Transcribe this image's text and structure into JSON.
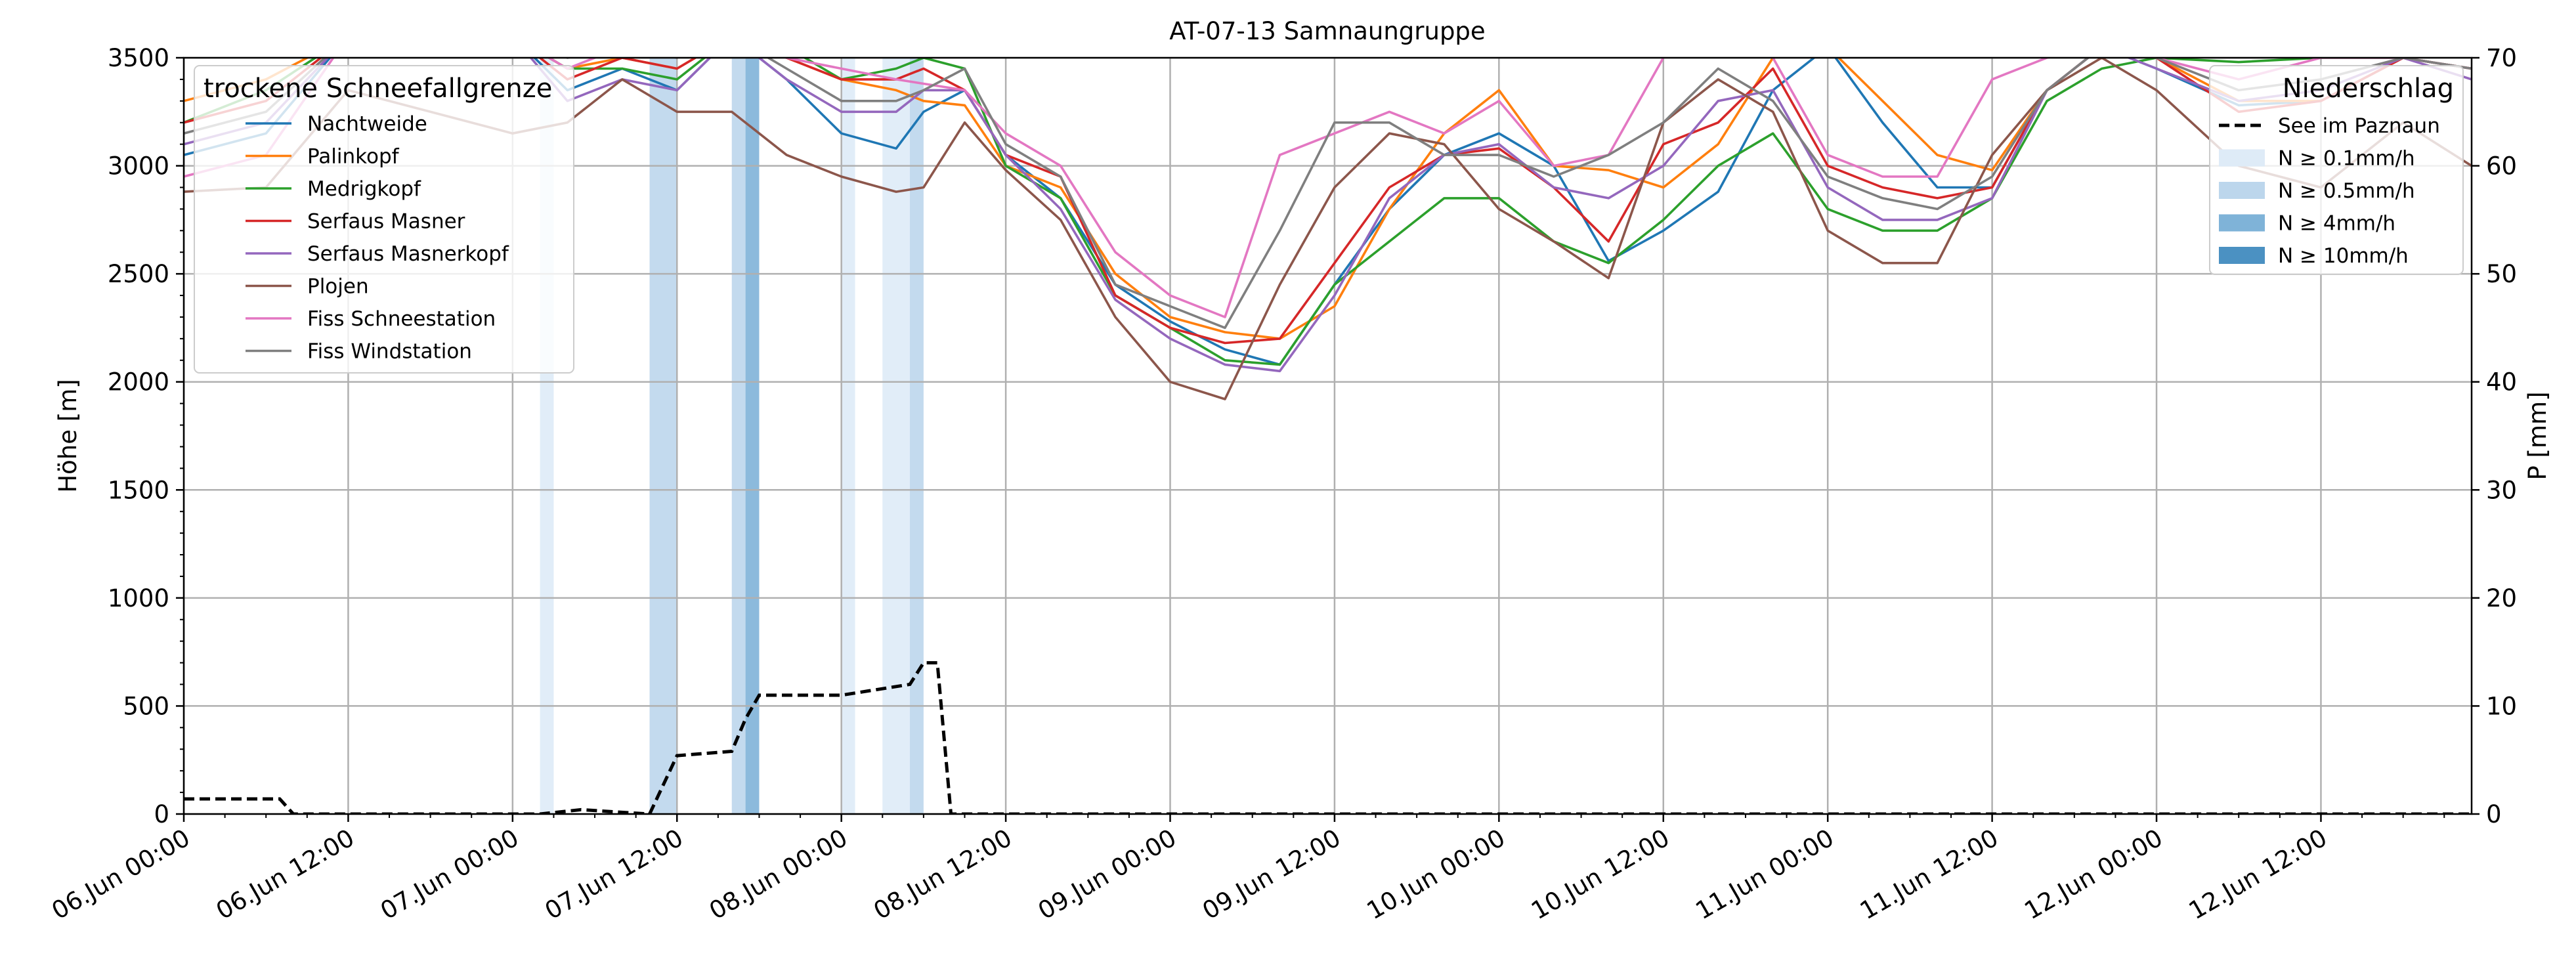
{
  "chart_data": {
    "type": "line",
    "title": "AT-07-13 Samnaungruppe",
    "ylabel": "Höhe [m]",
    "ylabel_right": "P [mm]",
    "ylim": [
      0,
      3500
    ],
    "ylim_right": [
      0,
      70
    ],
    "yticks": [
      0,
      500,
      1000,
      1500,
      2000,
      2500,
      3000,
      3500
    ],
    "yticks_right": [
      0,
      10,
      20,
      30,
      40,
      50,
      60,
      70
    ],
    "xlim_hours": [
      0,
      167
    ],
    "xticks": [
      {
        "h": 0,
        "label": "06.Jun 00:00"
      },
      {
        "h": 12,
        "label": "06.Jun 12:00"
      },
      {
        "h": 24,
        "label": "07.Jun 00:00"
      },
      {
        "h": 36,
        "label": "07.Jun 12:00"
      },
      {
        "h": 48,
        "label": "08.Jun 00:00"
      },
      {
        "h": 60,
        "label": "08.Jun 12:00"
      },
      {
        "h": 72,
        "label": "09.Jun 00:00"
      },
      {
        "h": 84,
        "label": "09.Jun 12:00"
      },
      {
        "h": 96,
        "label": "10.Jun 00:00"
      },
      {
        "h": 108,
        "label": "10.Jun 12:00"
      },
      {
        "h": 120,
        "label": "11.Jun 00:00"
      },
      {
        "h": 132,
        "label": "11.Jun 12:00"
      },
      {
        "h": 144,
        "label": "12.Jun 00:00"
      },
      {
        "h": 156,
        "label": "12.Jun 12:00"
      }
    ],
    "grid": true,
    "legend_left": {
      "title": "trockene Schneefallgrenze",
      "position": "top-left"
    },
    "legend_right": {
      "title": "Niederschlag",
      "position": "top-right",
      "entries": [
        {
          "label": "See im Paznaun",
          "style": "dashed",
          "color": "#000000"
        },
        {
          "label": "N ≥ 0.1mm/h",
          "color": "#deebf7"
        },
        {
          "label": "N ≥ 0.5mm/h",
          "color": "#bcd6ec"
        },
        {
          "label": "N ≥ 4mm/h",
          "color": "#7fb3d8"
        },
        {
          "label": "N ≥ 10mm/h",
          "color": "#4b91c2"
        }
      ]
    },
    "precip_bands": [
      {
        "start": 26,
        "end": 27,
        "level": 0
      },
      {
        "start": 34,
        "end": 36,
        "level": 1
      },
      {
        "start": 40,
        "end": 41,
        "level": 1
      },
      {
        "start": 41,
        "end": 42,
        "level": 2
      },
      {
        "start": 48,
        "end": 49,
        "level": 0
      },
      {
        "start": 51,
        "end": 53,
        "level": 0
      },
      {
        "start": 53,
        "end": 54,
        "level": 1
      }
    ],
    "precip_cumulative": {
      "name": "See im Paznaun",
      "unit": "mm",
      "x": [
        0,
        7,
        8,
        26,
        29,
        34,
        36,
        40,
        41,
        42,
        48,
        50,
        53,
        54,
        55,
        56,
        167
      ],
      "y": [
        1.4,
        1.4,
        0,
        0,
        0.4,
        0,
        5.4,
        5.8,
        8.8,
        11,
        11,
        11.4,
        12,
        14,
        14,
        0,
        0
      ]
    },
    "series": [
      {
        "name": "Nachtweide",
        "color": "#1f77b4",
        "x": [
          0,
          6,
          12,
          18,
          24,
          28,
          32,
          36,
          40,
          44,
          48,
          52,
          54,
          57,
          60,
          64,
          68,
          72,
          76,
          80,
          84,
          88,
          92,
          96,
          100,
          104,
          108,
          112,
          116,
          120,
          124,
          128,
          132,
          136,
          140,
          144,
          150,
          156,
          162,
          167
        ],
        "y": [
          3050,
          3150,
          3600,
          3600,
          3600,
          3350,
          3450,
          3350,
          3600,
          3400,
          3150,
          3080,
          3250,
          3350,
          3050,
          2850,
          2450,
          2280,
          2150,
          2080,
          2450,
          2800,
          3050,
          3150,
          3000,
          2560,
          2700,
          2880,
          3350,
          3550,
          3200,
          2900,
          2900,
          3350,
          3550,
          3450,
          3280,
          3300,
          3500,
          3450
        ]
      },
      {
        "name": "Palinkopf",
        "color": "#ff7f0e",
        "x": [
          0,
          6,
          12,
          18,
          24,
          28,
          32,
          36,
          40,
          44,
          48,
          52,
          54,
          57,
          60,
          64,
          68,
          72,
          76,
          80,
          84,
          88,
          92,
          96,
          100,
          104,
          108,
          112,
          116,
          120,
          124,
          128,
          132,
          136,
          140,
          144,
          150,
          156,
          162,
          167
        ],
        "y": [
          3300,
          3400,
          3600,
          3600,
          3600,
          3450,
          3500,
          3450,
          3600,
          3500,
          3400,
          3350,
          3300,
          3280,
          3000,
          2900,
          2500,
          2300,
          2230,
          2200,
          2350,
          2800,
          3150,
          3350,
          3000,
          2980,
          2900,
          3100,
          3500,
          3550,
          3300,
          3050,
          2980,
          3350,
          3550,
          3500,
          3300,
          3300,
          3500,
          3450
        ]
      },
      {
        "name": "Medrigkopf",
        "color": "#2ca02c",
        "x": [
          0,
          6,
          12,
          18,
          24,
          28,
          32,
          36,
          40,
          44,
          48,
          52,
          54,
          57,
          60,
          64,
          68,
          72,
          76,
          80,
          84,
          88,
          92,
          96,
          100,
          104,
          108,
          112,
          116,
          120,
          124,
          128,
          132,
          136,
          140,
          144,
          150,
          156,
          162,
          167
        ],
        "y": [
          3200,
          3350,
          3600,
          3600,
          3600,
          3450,
          3450,
          3400,
          3600,
          3550,
          3400,
          3450,
          3500,
          3450,
          3000,
          2850,
          2400,
          2250,
          2100,
          2080,
          2450,
          2650,
          2850,
          2850,
          2650,
          2550,
          2750,
          3000,
          3150,
          2800,
          2700,
          2700,
          2850,
          3300,
          3450,
          3500,
          3480,
          3500,
          3500,
          3450
        ]
      },
      {
        "name": "Serfaus Masner",
        "color": "#d62728",
        "x": [
          0,
          6,
          12,
          18,
          24,
          28,
          32,
          36,
          40,
          44,
          48,
          52,
          54,
          57,
          60,
          64,
          68,
          72,
          76,
          80,
          84,
          88,
          92,
          96,
          100,
          104,
          108,
          112,
          116,
          120,
          124,
          128,
          132,
          136,
          140,
          144,
          150,
          156,
          162,
          167
        ],
        "y": [
          3200,
          3300,
          3600,
          3600,
          3600,
          3400,
          3500,
          3450,
          3600,
          3500,
          3400,
          3400,
          3450,
          3350,
          3050,
          2950,
          2400,
          2250,
          2180,
          2200,
          2550,
          2900,
          3050,
          3080,
          2900,
          2650,
          3100,
          3200,
          3450,
          3000,
          2900,
          2850,
          2900,
          3350,
          3550,
          3500,
          3250,
          3300,
          3500,
          3450
        ]
      },
      {
        "name": "Serfaus Masnerkopf",
        "color": "#9467bd",
        "x": [
          0,
          6,
          12,
          18,
          24,
          28,
          32,
          36,
          40,
          44,
          48,
          52,
          54,
          57,
          60,
          64,
          68,
          72,
          76,
          80,
          84,
          88,
          92,
          96,
          100,
          104,
          108,
          112,
          116,
          120,
          124,
          128,
          132,
          136,
          140,
          144,
          150,
          156,
          162,
          167
        ],
        "y": [
          3100,
          3200,
          3600,
          3600,
          3600,
          3300,
          3400,
          3350,
          3600,
          3400,
          3250,
          3250,
          3350,
          3350,
          3050,
          2800,
          2380,
          2200,
          2080,
          2050,
          2400,
          2850,
          3050,
          3100,
          2900,
          2850,
          3000,
          3300,
          3350,
          2900,
          2750,
          2750,
          2850,
          3350,
          3550,
          3450,
          3300,
          3350,
          3500,
          3400
        ]
      },
      {
        "name": "Plojen",
        "color": "#8c564b",
        "x": [
          0,
          6,
          12,
          18,
          24,
          28,
          32,
          36,
          40,
          44,
          48,
          52,
          54,
          57,
          60,
          64,
          68,
          72,
          76,
          80,
          84,
          88,
          92,
          96,
          100,
          104,
          108,
          112,
          116,
          120,
          124,
          128,
          132,
          136,
          140,
          144,
          150,
          156,
          162,
          167
        ],
        "y": [
          2880,
          2900,
          3350,
          3250,
          3150,
          3200,
          3400,
          3250,
          3250,
          3050,
          2950,
          2880,
          2900,
          3200,
          2980,
          2750,
          2300,
          2000,
          1920,
          2450,
          2900,
          3150,
          3100,
          2800,
          2650,
          2480,
          3200,
          3400,
          3250,
          2700,
          2550,
          2550,
          3050,
          3350,
          3500,
          3350,
          3000,
          2900,
          3200,
          3000
        ]
      },
      {
        "name": "Fiss Schneestation",
        "color": "#e377c2",
        "x": [
          0,
          6,
          12,
          18,
          24,
          28,
          32,
          36,
          40,
          44,
          48,
          52,
          54,
          57,
          60,
          64,
          68,
          72,
          76,
          80,
          84,
          88,
          92,
          96,
          100,
          104,
          108,
          112,
          116,
          120,
          124,
          128,
          132,
          136,
          140,
          144,
          150,
          156,
          162,
          167
        ],
        "y": [
          2950,
          3050,
          3600,
          3600,
          3600,
          3450,
          3550,
          3550,
          3600,
          3500,
          3450,
          3400,
          3380,
          3350,
          3150,
          3000,
          2600,
          2400,
          2300,
          3050,
          3150,
          3250,
          3150,
          3300,
          3000,
          3050,
          3500,
          3600,
          3500,
          3050,
          2950,
          2950,
          3400,
          3500,
          3550,
          3500,
          3400,
          3500,
          3500,
          3450
        ]
      },
      {
        "name": "Fiss Windstation",
        "color": "#7f7f7f",
        "x": [
          0,
          6,
          12,
          18,
          24,
          28,
          32,
          36,
          40,
          44,
          48,
          52,
          54,
          57,
          60,
          64,
          68,
          72,
          76,
          80,
          84,
          88,
          92,
          96,
          100,
          104,
          108,
          112,
          116,
          120,
          124,
          128,
          132,
          136,
          140,
          144,
          150,
          156,
          162,
          167
        ],
        "y": [
          3150,
          3250,
          3600,
          3600,
          3600,
          3500,
          3550,
          3500,
          3600,
          3450,
          3300,
          3300,
          3350,
          3450,
          3100,
          2950,
          2450,
          2350,
          2250,
          2700,
          3200,
          3200,
          3050,
          3050,
          2950,
          3050,
          3200,
          3450,
          3300,
          2950,
          2850,
          2800,
          2950,
          3350,
          3550,
          3500,
          3350,
          3400,
          3500,
          3450
        ]
      }
    ]
  }
}
